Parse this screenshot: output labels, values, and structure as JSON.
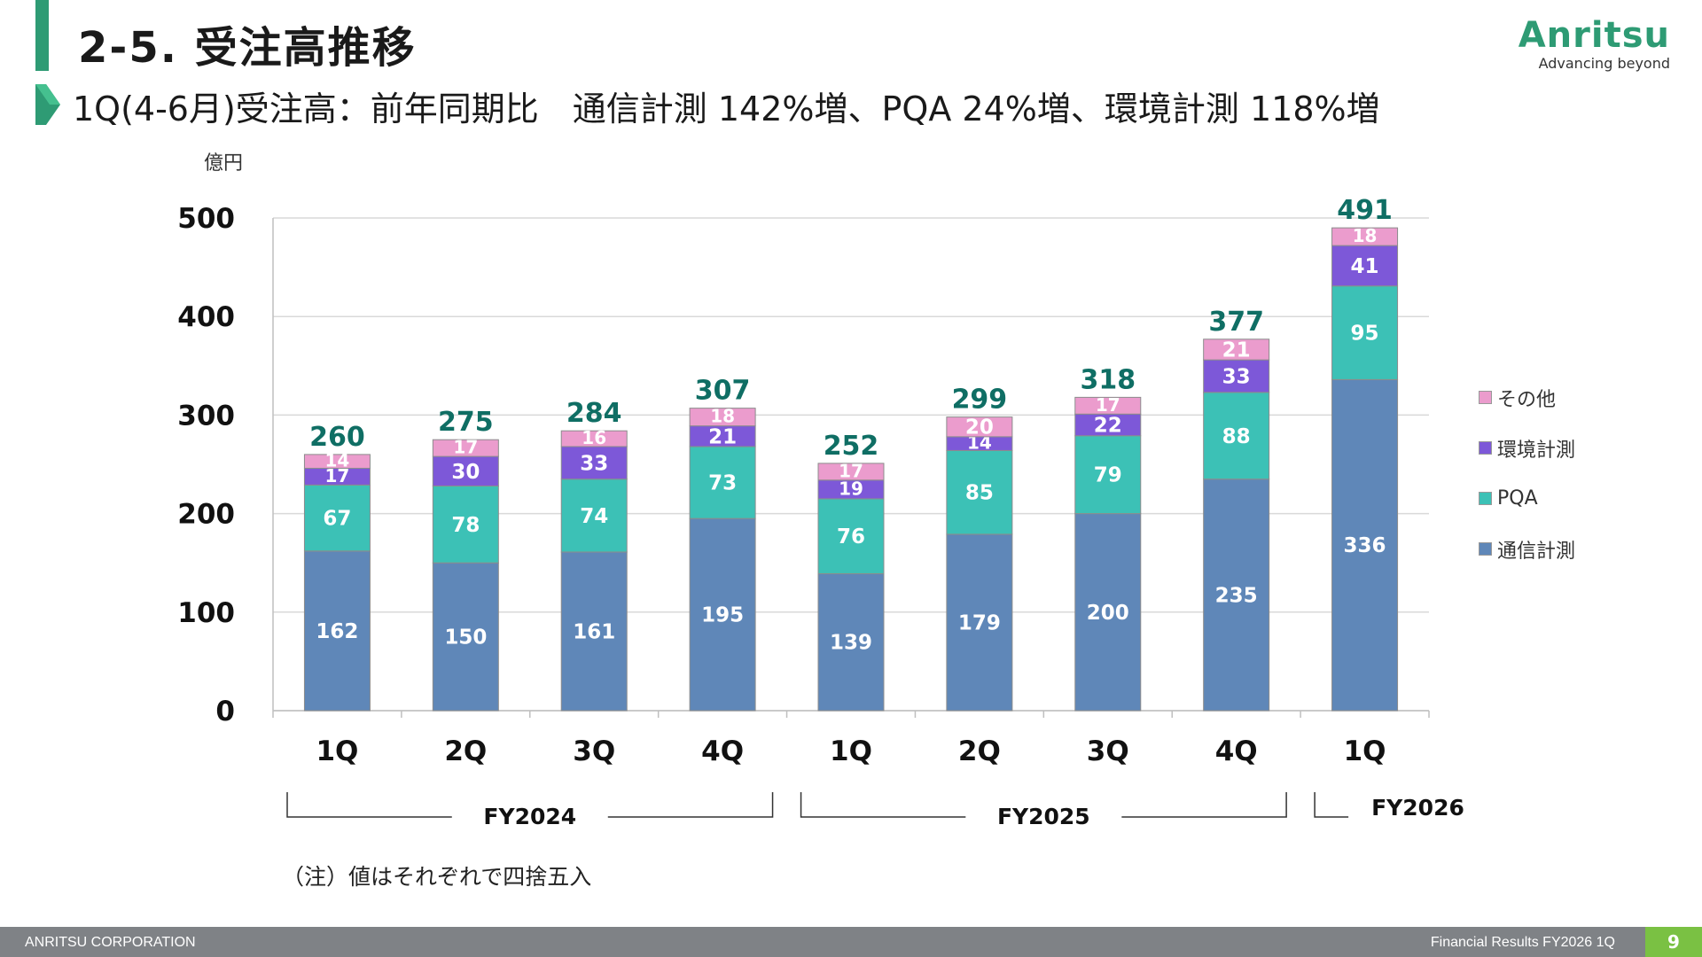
{
  "header": {
    "title": "2-5. 受注高推移",
    "subtitle": "1Q(4-6月)受注高：前年同期比　通信計測 142%増、PQA 24%増、環境計測 118%増",
    "logo_name": "Anritsu",
    "logo_tagline": "Advancing beyond"
  },
  "chart_data": {
    "type": "bar",
    "stacked": true,
    "unit_label": "億円",
    "ylim": [
      0,
      500
    ],
    "yticks": [
      0,
      100,
      200,
      300,
      400,
      500
    ],
    "categories": [
      "1Q",
      "2Q",
      "3Q",
      "4Q",
      "1Q",
      "2Q",
      "3Q",
      "4Q",
      "1Q"
    ],
    "groups": [
      {
        "label": "FY2024",
        "start": 0,
        "end": 3
      },
      {
        "label": "FY2025",
        "start": 4,
        "end": 7
      },
      {
        "label": "FY2026",
        "start": 8,
        "end": 8
      }
    ],
    "series": [
      {
        "name": "通信計測",
        "color": "#5f87b8",
        "values": [
          162,
          150,
          161,
          195,
          139,
          179,
          200,
          235,
          336
        ]
      },
      {
        "name": "PQA",
        "color": "#3cc1b6",
        "values": [
          67,
          78,
          74,
          73,
          76,
          85,
          79,
          88,
          95
        ]
      },
      {
        "name": "環境計測",
        "color": "#7d58d8",
        "values": [
          17,
          30,
          33,
          21,
          19,
          14,
          22,
          33,
          41
        ]
      },
      {
        "name": "その他",
        "color": "#eb9ccd",
        "values": [
          14,
          17,
          16,
          18,
          17,
          20,
          17,
          21,
          18
        ]
      }
    ],
    "totals": [
      260,
      275,
      284,
      307,
      252,
      299,
      318,
      377,
      491
    ],
    "total_color": "#0f6e64",
    "legend_position": "right",
    "grid": true
  },
  "note": "（注）値はそれぞれで四捨五入",
  "footer": {
    "company": "ANRITSU CORPORATION",
    "report": "Financial Results FY2026 1Q",
    "page": "9"
  }
}
